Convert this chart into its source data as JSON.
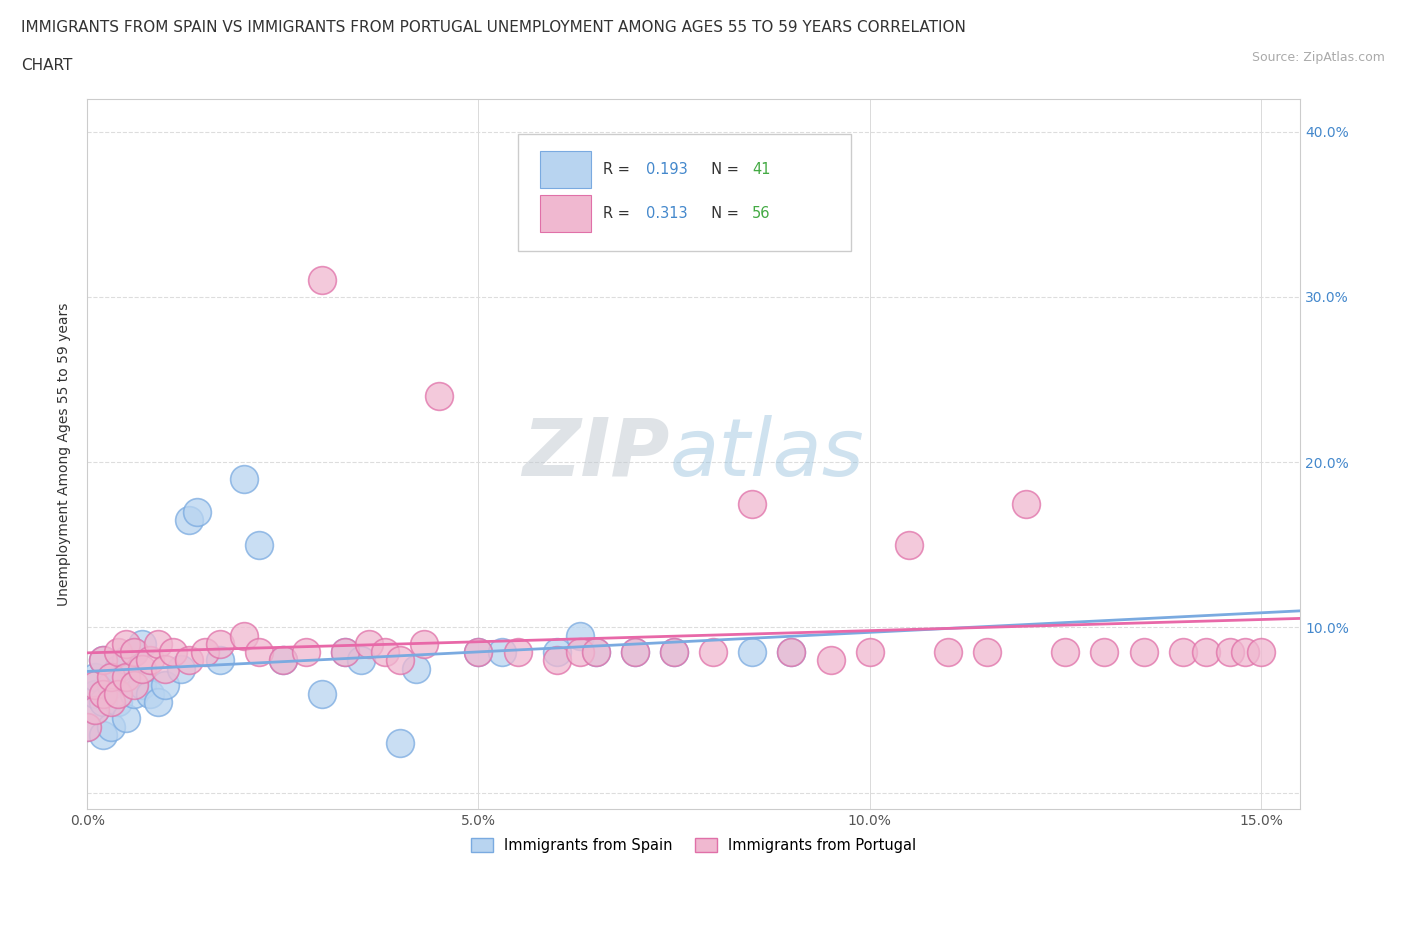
{
  "title_line1": "IMMIGRANTS FROM SPAIN VS IMMIGRANTS FROM PORTUGAL UNEMPLOYMENT AMONG AGES 55 TO 59 YEARS CORRELATION",
  "title_line2": "CHART",
  "source": "Source: ZipAtlas.com",
  "ylabel": "Unemployment Among Ages 55 to 59 years",
  "xlim": [
    0.0,
    0.155
  ],
  "ylim": [
    -0.01,
    0.42
  ],
  "spain_R": 0.193,
  "spain_N": 41,
  "portugal_R": 0.313,
  "portugal_N": 56,
  "spain_color": "#b8d4f0",
  "portugal_color": "#f0b8d0",
  "spain_edge_color": "#7aaae0",
  "portugal_edge_color": "#e070a8",
  "spain_line_color": "#7aaae0",
  "portugal_line_color": "#e868a8",
  "blue_text": "#4488cc",
  "green_text": "#44aa44",
  "background_color": "#ffffff",
  "grid_color": "#dddddd",
  "watermark_color": "#c8d8e8",
  "spain_x": [
    0.0,
    0.001,
    0.001,
    0.001,
    0.002,
    0.002,
    0.002,
    0.003,
    0.003,
    0.004,
    0.004,
    0.005,
    0.005,
    0.006,
    0.006,
    0.007,
    0.007,
    0.008,
    0.009,
    0.01,
    0.012,
    0.013,
    0.014,
    0.017,
    0.02,
    0.022,
    0.025,
    0.03,
    0.033,
    0.035,
    0.04,
    0.042,
    0.05,
    0.053,
    0.06,
    0.063,
    0.065,
    0.07,
    0.075,
    0.085,
    0.09
  ],
  "spain_y": [
    0.04,
    0.05,
    0.06,
    0.07,
    0.035,
    0.055,
    0.08,
    0.04,
    0.065,
    0.055,
    0.075,
    0.045,
    0.08,
    0.06,
    0.085,
    0.065,
    0.09,
    0.06,
    0.055,
    0.065,
    0.075,
    0.165,
    0.17,
    0.08,
    0.19,
    0.15,
    0.08,
    0.06,
    0.085,
    0.08,
    0.03,
    0.075,
    0.085,
    0.085,
    0.085,
    0.095,
    0.085,
    0.085,
    0.085,
    0.085,
    0.085
  ],
  "portugal_x": [
    0.0,
    0.001,
    0.001,
    0.002,
    0.002,
    0.003,
    0.003,
    0.004,
    0.004,
    0.005,
    0.005,
    0.006,
    0.006,
    0.007,
    0.008,
    0.009,
    0.01,
    0.011,
    0.013,
    0.015,
    0.017,
    0.02,
    0.022,
    0.025,
    0.028,
    0.03,
    0.033,
    0.036,
    0.038,
    0.04,
    0.043,
    0.045,
    0.05,
    0.055,
    0.06,
    0.063,
    0.065,
    0.07,
    0.075,
    0.08,
    0.085,
    0.09,
    0.095,
    0.1,
    0.105,
    0.11,
    0.115,
    0.12,
    0.125,
    0.13,
    0.135,
    0.14,
    0.143,
    0.146,
    0.148,
    0.15
  ],
  "portugal_y": [
    0.04,
    0.05,
    0.065,
    0.06,
    0.08,
    0.055,
    0.07,
    0.06,
    0.085,
    0.07,
    0.09,
    0.065,
    0.085,
    0.075,
    0.08,
    0.09,
    0.075,
    0.085,
    0.08,
    0.085,
    0.09,
    0.095,
    0.085,
    0.08,
    0.085,
    0.31,
    0.085,
    0.09,
    0.085,
    0.08,
    0.09,
    0.24,
    0.085,
    0.085,
    0.08,
    0.085,
    0.085,
    0.085,
    0.085,
    0.085,
    0.175,
    0.085,
    0.08,
    0.085,
    0.15,
    0.085,
    0.085,
    0.175,
    0.085,
    0.085,
    0.085,
    0.085,
    0.085,
    0.085,
    0.085,
    0.085
  ]
}
